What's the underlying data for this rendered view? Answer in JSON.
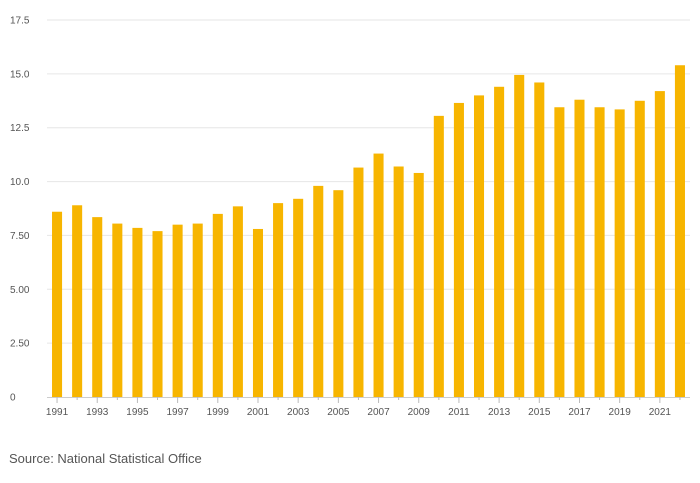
{
  "chart_data": {
    "type": "bar",
    "title": "",
    "xlabel": "",
    "ylabel": "",
    "categories": [
      "1991",
      "1992",
      "1993",
      "1994",
      "1995",
      "1996",
      "1997",
      "1998",
      "1999",
      "2000",
      "2001",
      "2002",
      "2003",
      "2004",
      "2005",
      "2006",
      "2007",
      "2008",
      "2009",
      "2010",
      "2011",
      "2012",
      "2013",
      "2014",
      "2015",
      "2016",
      "2017",
      "2018",
      "2019",
      "2020",
      "2021",
      "2022"
    ],
    "values": [
      8.6,
      8.9,
      8.35,
      8.05,
      7.85,
      7.7,
      8.0,
      8.05,
      8.5,
      8.85,
      7.8,
      9.0,
      9.2,
      9.8,
      9.6,
      10.65,
      11.3,
      10.7,
      10.4,
      13.05,
      13.65,
      14.0,
      14.4,
      14.95,
      14.6,
      13.45,
      13.8,
      13.45,
      13.35,
      13.75,
      14.2,
      15.4
    ],
    "ylim": [
      0,
      17.5
    ],
    "y_ticks": [
      "0",
      "2.50",
      "5.00",
      "7.50",
      "10.0",
      "12.5",
      "15.0",
      "17.5"
    ],
    "x_tick_labels": [
      "1991",
      "1993",
      "1995",
      "1997",
      "1999",
      "2001",
      "2003",
      "2005",
      "2007",
      "2009",
      "2011",
      "2013",
      "2015",
      "2017",
      "2019",
      "2021"
    ],
    "bar_color": "#F7B500",
    "grid": true
  },
  "source_text": "Source: National Statistical Office"
}
